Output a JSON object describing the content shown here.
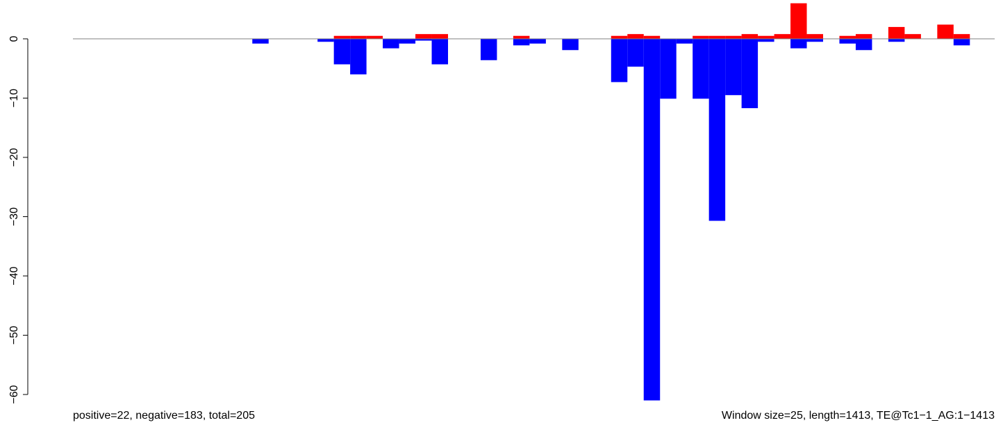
{
  "chart_data": {
    "type": "bar",
    "title": "",
    "xlabel": "",
    "ylabel": "",
    "ylim": [
      -60,
      6
    ],
    "yticks": [
      0,
      -10,
      -20,
      -30,
      -40,
      -50,
      -60
    ],
    "ytick_labels": [
      "0",
      "−10",
      "−20",
      "−30",
      "−40",
      "−50",
      "−60"
    ],
    "xlim": [
      0,
      1413
    ],
    "window_size": 25,
    "baseline": 0,
    "grid": false,
    "legend": "none",
    "colors": {
      "positive": "#ff0000",
      "negative": "#0000ff",
      "baseline": "#808080"
    },
    "series": [
      {
        "name": "positive",
        "color": "#ff0000",
        "bars": [
          {
            "x": 400,
            "value": 0.5
          },
          {
            "x": 425,
            "value": 0.5
          },
          {
            "x": 450,
            "value": 0.5
          },
          {
            "x": 525,
            "value": 0.8
          },
          {
            "x": 550,
            "value": 0.8
          },
          {
            "x": 675,
            "value": 0.5
          },
          {
            "x": 825,
            "value": 0.5
          },
          {
            "x": 850,
            "value": 0.8
          },
          {
            "x": 875,
            "value": 0.5
          },
          {
            "x": 950,
            "value": 0.5
          },
          {
            "x": 975,
            "value": 0.5
          },
          {
            "x": 1000,
            "value": 0.5
          },
          {
            "x": 1025,
            "value": 0.8
          },
          {
            "x": 1050,
            "value": 0.5
          },
          {
            "x": 1075,
            "value": 0.8
          },
          {
            "x": 1100,
            "value": 6.0
          },
          {
            "x": 1125,
            "value": 0.8
          },
          {
            "x": 1175,
            "value": 0.5
          },
          {
            "x": 1200,
            "value": 0.8
          },
          {
            "x": 1250,
            "value": 2.0
          },
          {
            "x": 1275,
            "value": 0.8
          },
          {
            "x": 1325,
            "value": 2.4
          },
          {
            "x": 1350,
            "value": 0.8
          }
        ]
      },
      {
        "name": "negative",
        "color": "#0000ff",
        "bars": [
          {
            "x": 275,
            "value": -0.8
          },
          {
            "x": 375,
            "value": -0.5
          },
          {
            "x": 400,
            "value": -4.3
          },
          {
            "x": 425,
            "value": -6.0
          },
          {
            "x": 475,
            "value": -1.6
          },
          {
            "x": 500,
            "value": -0.8
          },
          {
            "x": 525,
            "value": -0.3
          },
          {
            "x": 550,
            "value": -4.3
          },
          {
            "x": 625,
            "value": -3.6
          },
          {
            "x": 675,
            "value": -1.1
          },
          {
            "x": 700,
            "value": -0.8
          },
          {
            "x": 750,
            "value": -1.9
          },
          {
            "x": 825,
            "value": -7.3
          },
          {
            "x": 850,
            "value": -4.7
          },
          {
            "x": 875,
            "value": -61.0
          },
          {
            "x": 900,
            "value": -10.1
          },
          {
            "x": 925,
            "value": -0.8
          },
          {
            "x": 950,
            "value": -10.1
          },
          {
            "x": 975,
            "value": -30.7
          },
          {
            "x": 1000,
            "value": -9.5
          },
          {
            "x": 1025,
            "value": -11.7
          },
          {
            "x": 1050,
            "value": -0.5
          },
          {
            "x": 1100,
            "value": -1.6
          },
          {
            "x": 1125,
            "value": -0.5
          },
          {
            "x": 1175,
            "value": -0.8
          },
          {
            "x": 1200,
            "value": -1.9
          },
          {
            "x": 1250,
            "value": -0.5
          },
          {
            "x": 1350,
            "value": -1.1
          }
        ]
      }
    ],
    "annotations": {
      "left": "positive=22, negative=183, total=205",
      "right": "Window size=25, length=1413, TE@Tc1−1_AG:1−1413"
    }
  }
}
